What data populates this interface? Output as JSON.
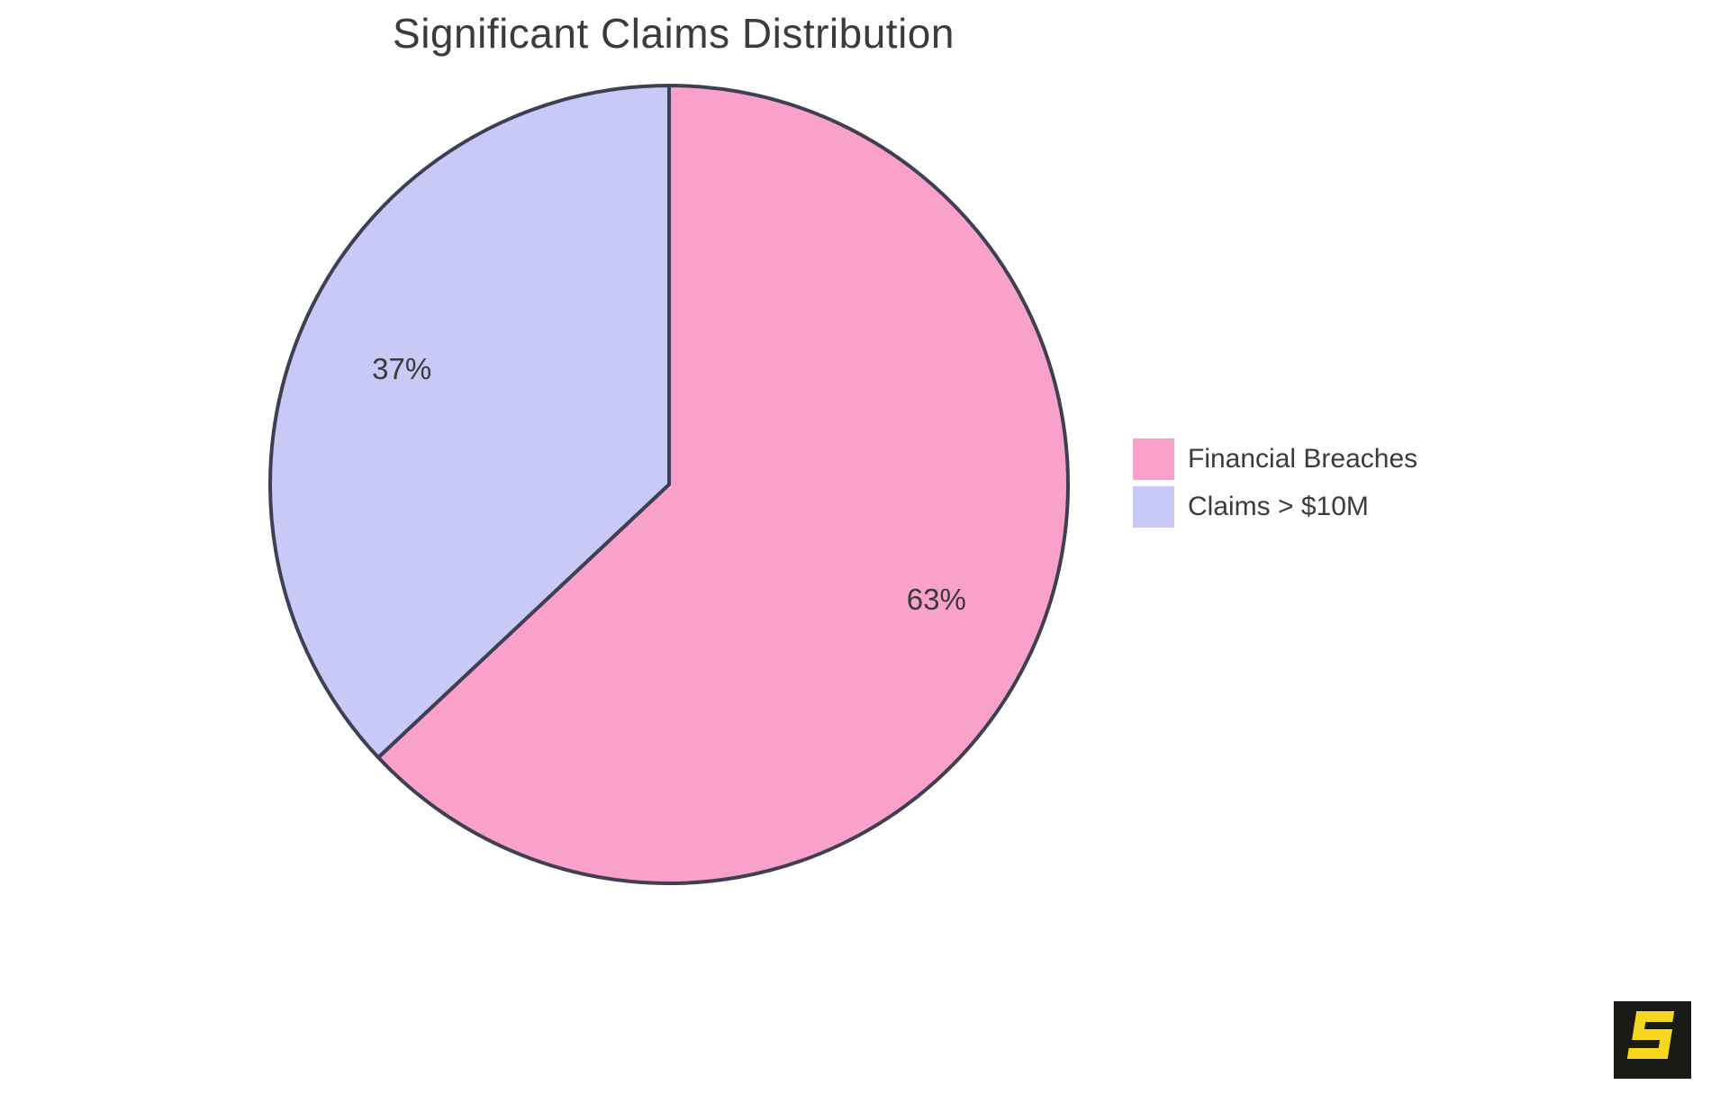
{
  "page": {
    "background_color": "#FFFFFF"
  },
  "chart_data": {
    "type": "pie",
    "title": "Significant Claims Distribution",
    "slices": [
      {
        "label": "Financial Breaches",
        "value": 63,
        "display": "63%",
        "color": "#FAA1CB"
      },
      {
        "label": "Claims > $10M",
        "value": 37,
        "display": "37%",
        "color": "#C8C9F7"
      }
    ],
    "start_angle_deg": 90,
    "direction": "clockwise",
    "slice_border_color": "#3F3F54",
    "slice_border_width": 4,
    "label_color": "#3A3A3A",
    "title_color": "#3B3B3B",
    "legend_position": "right",
    "legend_text_color": "#3B3B3B"
  },
  "branding": {
    "logo_letter": "S",
    "logo_background": "#1A1A17",
    "logo_glyph_color": "#F4D71E"
  }
}
